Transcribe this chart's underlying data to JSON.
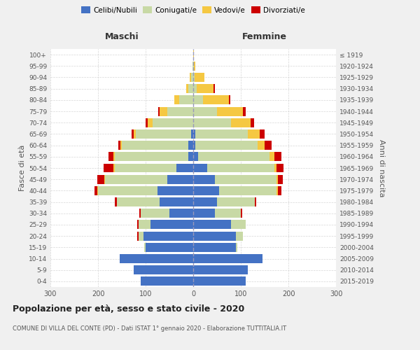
{
  "age_groups": [
    "0-4",
    "5-9",
    "10-14",
    "15-19",
    "20-24",
    "25-29",
    "30-34",
    "35-39",
    "40-44",
    "45-49",
    "50-54",
    "55-59",
    "60-64",
    "65-69",
    "70-74",
    "75-79",
    "80-84",
    "85-89",
    "90-94",
    "95-99",
    "100+"
  ],
  "birth_years": [
    "2015-2019",
    "2010-2014",
    "2005-2009",
    "2000-2004",
    "1995-1999",
    "1990-1994",
    "1985-1989",
    "1980-1984",
    "1975-1979",
    "1970-1974",
    "1965-1969",
    "1960-1964",
    "1955-1959",
    "1950-1954",
    "1945-1949",
    "1940-1944",
    "1935-1939",
    "1930-1934",
    "1925-1929",
    "1920-1924",
    "≤ 1919"
  ],
  "males": {
    "celibi": [
      110,
      125,
      155,
      100,
      105,
      90,
      50,
      70,
      75,
      55,
      35,
      10,
      10,
      5,
      0,
      0,
      0,
      0,
      0,
      0,
      0
    ],
    "coniugati": [
      0,
      0,
      0,
      3,
      10,
      25,
      60,
      90,
      125,
      130,
      130,
      155,
      140,
      115,
      85,
      55,
      30,
      10,
      5,
      2,
      0
    ],
    "vedovi": [
      0,
      0,
      0,
      0,
      0,
      0,
      0,
      0,
      2,
      2,
      3,
      3,
      3,
      5,
      10,
      15,
      10,
      5,
      3,
      0,
      0
    ],
    "divorziati": [
      0,
      0,
      0,
      0,
      2,
      3,
      3,
      5,
      5,
      15,
      20,
      10,
      5,
      5,
      5,
      3,
      0,
      0,
      0,
      0,
      0
    ]
  },
  "females": {
    "nubili": [
      110,
      115,
      145,
      90,
      90,
      80,
      45,
      50,
      55,
      45,
      30,
      10,
      5,
      5,
      0,
      0,
      0,
      0,
      0,
      0,
      0
    ],
    "coniugate": [
      0,
      0,
      0,
      3,
      15,
      30,
      55,
      80,
      120,
      130,
      140,
      150,
      130,
      110,
      80,
      50,
      20,
      8,
      3,
      1,
      0
    ],
    "vedove": [
      0,
      0,
      0,
      0,
      0,
      0,
      0,
      0,
      3,
      3,
      5,
      10,
      15,
      25,
      40,
      55,
      55,
      35,
      20,
      3,
      2
    ],
    "divorziate": [
      0,
      0,
      0,
      0,
      0,
      0,
      3,
      3,
      8,
      10,
      15,
      15,
      15,
      10,
      8,
      5,
      3,
      2,
      0,
      0,
      0
    ]
  },
  "colors": {
    "celibi_nubili": "#4472c4",
    "coniugati": "#c8d9a5",
    "vedovi": "#f5c842",
    "divorziati": "#cc0000"
  },
  "xlim": 300,
  "title": "Popolazione per età, sesso e stato civile - 2020",
  "subtitle": "COMUNE DI VILLA DEL CONTE (PD) - Dati ISTAT 1° gennaio 2020 - Elaborazione TUTTITALIA.IT",
  "ylabel_left": "Fasce di età",
  "ylabel_right": "Anni di nascita",
  "xlabel_left": "Maschi",
  "xlabel_right": "Femmine",
  "bg_color": "#f0f0f0",
  "plot_bg": "#ffffff",
  "grid_color": "#cccccc"
}
